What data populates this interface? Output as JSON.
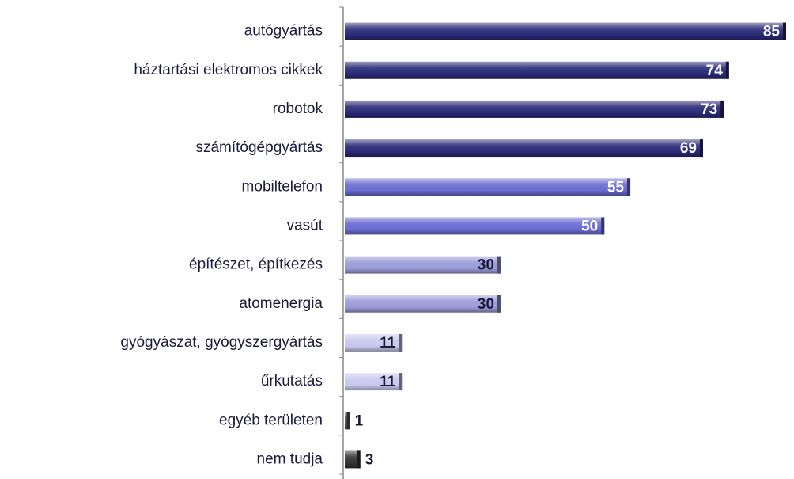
{
  "chart_data": {
    "type": "bar",
    "orientation": "horizontal",
    "categories": [
      "autógyártás",
      "háztartási elektromos cikkek",
      "robotok",
      "számítógépgyártás",
      "mobiltelefon",
      "vasút",
      "építészet, építkezés",
      "atomenergia",
      "gyógyászat, gyógyszergyártás",
      "űrkutatás",
      "egyéb területen",
      "nem tudja"
    ],
    "values": [
      85,
      74,
      73,
      69,
      55,
      50,
      30,
      30,
      11,
      11,
      1,
      3
    ],
    "colors": [
      "#2a2a78",
      "#2a2a78",
      "#2a2a78",
      "#2a2a78",
      "#6a6ad0",
      "#6a6ad0",
      "#9a9ad8",
      "#9a9ad8",
      "#c8c8ee",
      "#c8c8ee",
      "#555555",
      "#333333"
    ],
    "data_labels": true
  }
}
